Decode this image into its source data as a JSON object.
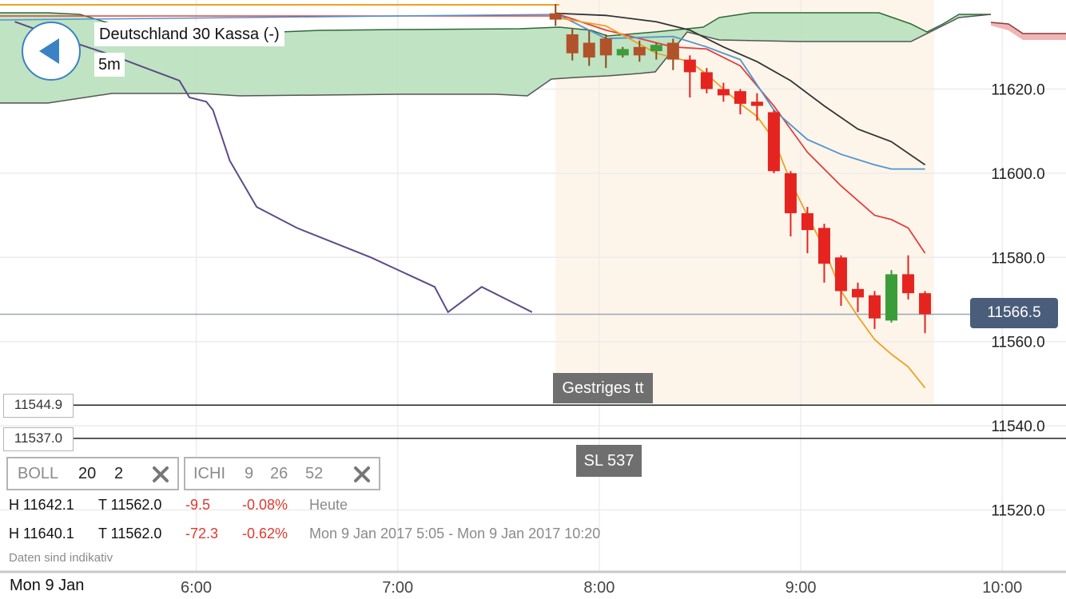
{
  "header": {
    "back_icon": "chevron-left-icon",
    "instrument": "Deutschland 30 Kassa (-)",
    "interval": "5m"
  },
  "price_tag": {
    "value": "11566.5",
    "color": "#4a5d7a"
  },
  "lines": [
    {
      "value": "11544.9",
      "label": "Gestriges tt"
    },
    {
      "value": "11537.0",
      "label": "SL 537"
    }
  ],
  "indicators": {
    "boll": {
      "name": "BOLL",
      "p1": "20",
      "p2": "2",
      "remove_icon": "close-icon"
    },
    "ichi": {
      "name": "ICHI",
      "p1": "9",
      "p2": "26",
      "p3": "52",
      "remove_icon": "close-icon"
    }
  },
  "stats": [
    {
      "high": "H 11642.1",
      "low": "T 11562.0",
      "change": "-9.5",
      "pct": "-0.08%",
      "period": "Heute"
    },
    {
      "high": "H 11640.1",
      "low": "T 11562.0",
      "change": "-72.3",
      "pct": "-0.62%",
      "period": "Mon 9 Jan 2017 5:05 - Mon 9 Jan 2017 10:20"
    }
  ],
  "disclaimer": "Daten sind indikativ",
  "date_label": "Mon 9 Jan",
  "colors": {
    "up": "#3a9d3a",
    "down": "#e52420",
    "neg_text": "#e03a2e",
    "cloud": "#bde1c0"
  },
  "chart_data": {
    "type": "candlestick",
    "y_ticks": [
      11620,
      11600,
      11580,
      11560,
      11540,
      11520
    ],
    "y_tick_labels": [
      "11620.0",
      "11600.0",
      "11580.0",
      "11560.0",
      "11540.0",
      "11520.0"
    ],
    "ylim": [
      11504,
      11640
    ],
    "x_ticks": [
      "6:00",
      "7:00",
      "8:00",
      "9:00",
      "10:00"
    ],
    "x_tick_minutes": [
      360,
      420,
      480,
      540,
      600
    ],
    "xlim": [
      306,
      627
    ],
    "grid": true,
    "candles": [
      {
        "t": 467,
        "o": 11638.0,
        "h": 11640.2,
        "c": 11636.5,
        "l": 11635.0
      },
      {
        "t": 472,
        "o": 11633.0,
        "h": 11634.5,
        "c": 11628.5,
        "l": 11626.8
      },
      {
        "t": 477,
        "o": 11631.0,
        "h": 11634.0,
        "c": 11627.5,
        "l": 11625.5
      },
      {
        "t": 482,
        "o": 11632.0,
        "h": 11633.0,
        "c": 11628.0,
        "l": 11625.0
      },
      {
        "t": 487,
        "o": 11628.0,
        "h": 11630.0,
        "c": 11629.5,
        "l": 11627.5
      },
      {
        "t": 492,
        "o": 11630.0,
        "h": 11631.5,
        "c": 11628.0,
        "l": 11626.5
      },
      {
        "t": 497,
        "o": 11629.0,
        "h": 11631.0,
        "c": 11630.5,
        "l": 11627.0
      },
      {
        "t": 502,
        "o": 11631.0,
        "h": 11632.0,
        "c": 11627.0,
        "l": 11624.5
      },
      {
        "t": 507,
        "o": 11627.0,
        "h": 11628.0,
        "c": 11624.0,
        "l": 11618.0
      },
      {
        "t": 512,
        "o": 11624.0,
        "h": 11625.0,
        "c": 11620.0,
        "l": 11619.0
      },
      {
        "t": 517,
        "o": 11620.0,
        "h": 11621.5,
        "c": 11618.5,
        "l": 11617.0
      },
      {
        "t": 522,
        "o": 11619.5,
        "h": 11620.0,
        "c": 11616.5,
        "l": 11614.0
      },
      {
        "t": 527,
        "o": 11617.0,
        "h": 11619.0,
        "c": 11616.0,
        "l": 11612.5
      },
      {
        "t": 532,
        "o": 11614.5,
        "h": 11615.0,
        "c": 11600.5,
        "l": 11600.0
      },
      {
        "t": 537,
        "o": 11600.0,
        "h": 11600.5,
        "c": 11590.5,
        "l": 11585.0
      },
      {
        "t": 542,
        "o": 11590.5,
        "h": 11592.0,
        "c": 11586.5,
        "l": 11581.0
      },
      {
        "t": 547,
        "o": 11587.0,
        "h": 11588.0,
        "c": 11578.5,
        "l": 11574.0
      },
      {
        "t": 552,
        "o": 11580.0,
        "h": 11580.5,
        "c": 11572.0,
        "l": 11568.5
      },
      {
        "t": 557,
        "o": 11572.5,
        "h": 11574.0,
        "c": 11570.5,
        "l": 11567.0
      },
      {
        "t": 562,
        "o": 11571.0,
        "h": 11572.0,
        "c": 11565.5,
        "l": 11563.0
      },
      {
        "t": 567,
        "o": 11565.0,
        "h": 11577.0,
        "c": 11576.0,
        "l": 11564.5
      },
      {
        "t": 572,
        "o": 11576.0,
        "h": 11580.5,
        "c": 11571.5,
        "l": 11570.0
      },
      {
        "t": 577,
        "o": 11571.5,
        "h": 11572.0,
        "c": 11566.5,
        "l": 11562.0
      }
    ],
    "series": [
      {
        "kind": "bollinger_upper",
        "color": "#e04040",
        "x": [
          467,
          482,
          502,
          512,
          522,
          532,
          542,
          552,
          562,
          567,
          572,
          577
        ],
        "y": [
          11638,
          11634,
          11630,
          11629.5,
          11625.5,
          11616,
          11605,
          11597,
          11590,
          11589,
          11587,
          11581
        ]
      },
      {
        "kind": "tenkan",
        "color": "#4f95d0",
        "x": [
          467,
          482,
          502,
          512,
          522,
          532,
          542,
          552,
          562,
          567,
          577
        ],
        "y": [
          11638,
          11632,
          11632.5,
          11630,
          11627,
          11615,
          11608,
          11604.5,
          11602,
          11601,
          11601
        ]
      },
      {
        "kind": "kijun",
        "color": "#333333",
        "x": [
          467,
          482,
          497,
          507,
          517,
          527,
          537,
          547,
          557,
          567,
          577
        ],
        "y": [
          11638,
          11637.5,
          11636,
          11634,
          11630,
          11626.5,
          11622,
          11616,
          11610.5,
          11607.5,
          11602
        ]
      },
      {
        "kind": "bollinger_mid",
        "color": "#f0a020",
        "x": [
          467,
          482,
          497,
          507,
          512,
          517,
          522,
          527,
          532,
          537,
          542,
          547,
          552,
          557,
          562,
          567,
          572,
          577
        ],
        "y": [
          11637,
          11635,
          11628.5,
          11626.5,
          11623.5,
          11620,
          11616.5,
          11613.5,
          11608,
          11598,
          11590,
          11582,
          11572,
          11566,
          11560.5,
          11557,
          11554,
          11549
        ]
      },
      {
        "kind": "chikou",
        "color": "#5e4a87",
        "x": [
          306,
          320,
          335,
          345,
          355,
          358,
          363,
          365,
          370,
          378,
          390,
          412,
          431,
          435,
          445,
          460
        ],
        "y": [
          11636,
          11632,
          11628,
          11625,
          11622,
          11618,
          11617,
          11615,
          11603,
          11592,
          11587,
          11580,
          11573,
          11567,
          11573,
          11567
        ]
      }
    ],
    "cloud_span": [
      306,
      627
    ],
    "cloud_range": [
      11617,
      11640
    ],
    "reference_lines": [
      11544.9,
      11537.0
    ],
    "current_price": 11566.5
  }
}
